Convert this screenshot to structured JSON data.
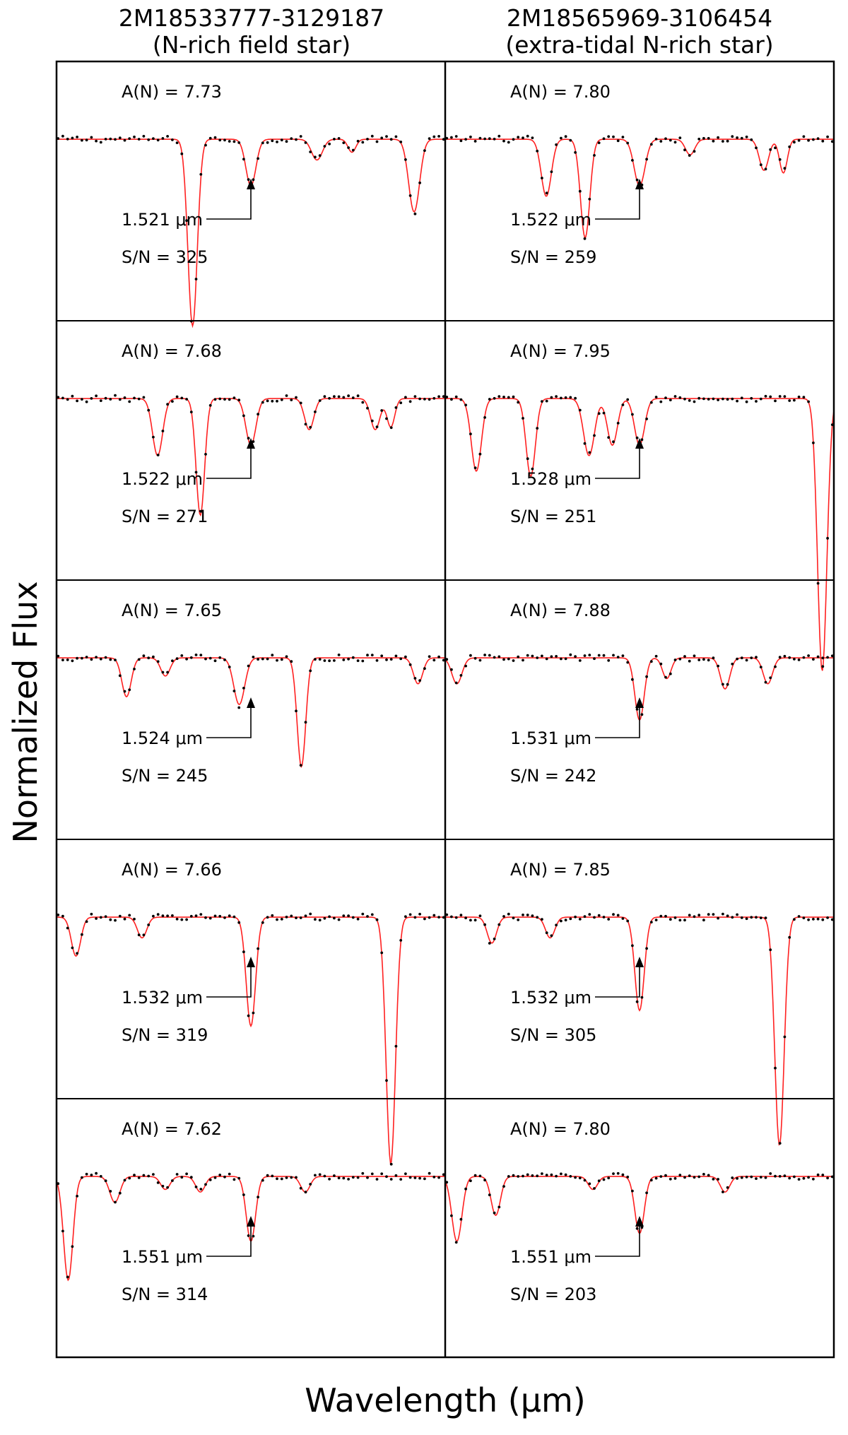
{
  "figure": {
    "xlabel": "Wavelength (μm)",
    "ylabel": "Normalized Flux",
    "columns": [
      {
        "title_line1": "2M18533777-3129187",
        "title_line2": "(N-rich field star)"
      },
      {
        "title_line1": "2M18565969-3106454",
        "title_line2": "(extra-tidal N-rich star)"
      }
    ],
    "colors": {
      "model": "#ff2020",
      "observed": "#000000",
      "frame": "#000000"
    }
  },
  "chart_data": [
    {
      "type": "line",
      "column": 0,
      "row": 0,
      "abundance": "A(N)  =  7.73",
      "wavelength_label": "1.521 μm",
      "snr": "S/N  =  325",
      "series": [
        {
          "style": "observed-points"
        },
        {
          "style": "model-line"
        }
      ],
      "continuum": 0.7,
      "marker_position": 0.5,
      "lines": [
        {
          "pos": 0.35,
          "depth": 0.72,
          "width": 0.012
        },
        {
          "pos": 0.5,
          "depth": 0.18,
          "width": 0.013
        },
        {
          "pos": 0.67,
          "depth": 0.08,
          "width": 0.014
        },
        {
          "pos": 0.76,
          "depth": 0.05,
          "width": 0.01
        },
        {
          "pos": 0.92,
          "depth": 0.28,
          "width": 0.014
        }
      ]
    },
    {
      "type": "line",
      "column": 1,
      "row": 0,
      "abundance": "A(N)  =  7.80",
      "wavelength_label": "1.522 μm",
      "snr": "S/N  =  259",
      "series": [
        {
          "style": "observed-points"
        },
        {
          "style": "model-line"
        }
      ],
      "continuum": 0.7,
      "marker_position": 0.5,
      "lines": [
        {
          "pos": 0.26,
          "depth": 0.22,
          "width": 0.013
        },
        {
          "pos": 0.36,
          "depth": 0.38,
          "width": 0.012
        },
        {
          "pos": 0.5,
          "depth": 0.18,
          "width": 0.014
        },
        {
          "pos": 0.63,
          "depth": 0.06,
          "width": 0.012
        },
        {
          "pos": 0.82,
          "depth": 0.12,
          "width": 0.012
        },
        {
          "pos": 0.87,
          "depth": 0.13,
          "width": 0.01
        }
      ]
    },
    {
      "type": "line",
      "column": 0,
      "row": 1,
      "abundance": "A(N)  =  7.68",
      "wavelength_label": "1.522 μm",
      "snr": "S/N  =  271",
      "series": [
        {
          "style": "observed-points"
        },
        {
          "style": "model-line"
        }
      ],
      "continuum": 0.7,
      "marker_position": 0.5,
      "lines": [
        {
          "pos": 0.26,
          "depth": 0.22,
          "width": 0.013
        },
        {
          "pos": 0.37,
          "depth": 0.45,
          "width": 0.011
        },
        {
          "pos": 0.5,
          "depth": 0.18,
          "width": 0.013
        },
        {
          "pos": 0.65,
          "depth": 0.12,
          "width": 0.012
        },
        {
          "pos": 0.82,
          "depth": 0.12,
          "width": 0.012
        },
        {
          "pos": 0.86,
          "depth": 0.11,
          "width": 0.01
        }
      ]
    },
    {
      "type": "line",
      "column": 1,
      "row": 1,
      "abundance": "A(N)  =  7.95",
      "wavelength_label": "1.528 μm",
      "snr": "S/N  =  251",
      "series": [
        {
          "style": "observed-points"
        },
        {
          "style": "model-line"
        }
      ],
      "continuum": 0.7,
      "marker_position": 0.5,
      "lines": [
        {
          "pos": 0.08,
          "depth": 0.28,
          "width": 0.013
        },
        {
          "pos": 0.22,
          "depth": 0.3,
          "width": 0.012
        },
        {
          "pos": 0.37,
          "depth": 0.22,
          "width": 0.014
        },
        {
          "pos": 0.43,
          "depth": 0.18,
          "width": 0.013
        },
        {
          "pos": 0.5,
          "depth": 0.18,
          "width": 0.013
        },
        {
          "pos": 0.97,
          "depth": 1.05,
          "width": 0.012
        }
      ]
    },
    {
      "type": "line",
      "column": 0,
      "row": 2,
      "abundance": "A(N)  =  7.65",
      "wavelength_label": "1.524 μm",
      "snr": "S/N  =  245",
      "series": [
        {
          "style": "observed-points"
        },
        {
          "style": "model-line"
        }
      ],
      "continuum": 0.7,
      "marker_position": 0.5,
      "lines": [
        {
          "pos": 0.18,
          "depth": 0.15,
          "width": 0.012
        },
        {
          "pos": 0.28,
          "depth": 0.07,
          "width": 0.012
        },
        {
          "pos": 0.47,
          "depth": 0.18,
          "width": 0.014
        },
        {
          "pos": 0.63,
          "depth": 0.42,
          "width": 0.011
        },
        {
          "pos": 0.93,
          "depth": 0.1,
          "width": 0.012
        }
      ]
    },
    {
      "type": "line",
      "column": 1,
      "row": 2,
      "abundance": "A(N)  =  7.88",
      "wavelength_label": "1.531 μm",
      "snr": "S/N  =  242",
      "series": [
        {
          "style": "observed-points"
        },
        {
          "style": "model-line"
        }
      ],
      "continuum": 0.7,
      "marker_position": 0.5,
      "lines": [
        {
          "pos": 0.03,
          "depth": 0.1,
          "width": 0.013
        },
        {
          "pos": 0.5,
          "depth": 0.24,
          "width": 0.012
        },
        {
          "pos": 0.57,
          "depth": 0.08,
          "width": 0.011
        },
        {
          "pos": 0.72,
          "depth": 0.12,
          "width": 0.012
        },
        {
          "pos": 0.83,
          "depth": 0.1,
          "width": 0.012
        }
      ]
    },
    {
      "type": "line",
      "column": 0,
      "row": 3,
      "abundance": "A(N)  =  7.66",
      "wavelength_label": "1.532 μm",
      "snr": "S/N  =  319",
      "series": [
        {
          "style": "observed-points"
        },
        {
          "style": "model-line"
        }
      ],
      "continuum": 0.7,
      "marker_position": 0.5,
      "lines": [
        {
          "pos": 0.05,
          "depth": 0.15,
          "width": 0.012
        },
        {
          "pos": 0.22,
          "depth": 0.08,
          "width": 0.012
        },
        {
          "pos": 0.5,
          "depth": 0.42,
          "width": 0.012
        },
        {
          "pos": 0.86,
          "depth": 0.95,
          "width": 0.012
        }
      ]
    },
    {
      "type": "line",
      "column": 1,
      "row": 3,
      "abundance": "A(N)  =  7.85",
      "wavelength_label": "1.532 μm",
      "snr": "S/N  =  305",
      "series": [
        {
          "style": "observed-points"
        },
        {
          "style": "model-line"
        }
      ],
      "continuum": 0.7,
      "marker_position": 0.5,
      "lines": [
        {
          "pos": 0.12,
          "depth": 0.1,
          "width": 0.012
        },
        {
          "pos": 0.27,
          "depth": 0.08,
          "width": 0.012
        },
        {
          "pos": 0.5,
          "depth": 0.36,
          "width": 0.012
        },
        {
          "pos": 0.86,
          "depth": 0.88,
          "width": 0.012
        }
      ]
    },
    {
      "type": "line",
      "column": 0,
      "row": 4,
      "abundance": "A(N)  =  7.62",
      "wavelength_label": "1.551 μm",
      "snr": "S/N  =  314",
      "series": [
        {
          "style": "observed-points"
        },
        {
          "style": "model-line"
        }
      ],
      "continuum": 0.7,
      "marker_position": 0.5,
      "lines": [
        {
          "pos": 0.03,
          "depth": 0.4,
          "width": 0.012
        },
        {
          "pos": 0.15,
          "depth": 0.1,
          "width": 0.013
        },
        {
          "pos": 0.28,
          "depth": 0.05,
          "width": 0.012
        },
        {
          "pos": 0.37,
          "depth": 0.06,
          "width": 0.012
        },
        {
          "pos": 0.5,
          "depth": 0.25,
          "width": 0.012
        },
        {
          "pos": 0.64,
          "depth": 0.06,
          "width": 0.012
        }
      ]
    },
    {
      "type": "line",
      "column": 1,
      "row": 4,
      "abundance": "A(N)  =  7.80",
      "wavelength_label": "1.551 μm",
      "snr": "S/N  =  203",
      "series": [
        {
          "style": "observed-points"
        },
        {
          "style": "model-line"
        }
      ],
      "continuum": 0.7,
      "marker_position": 0.5,
      "lines": [
        {
          "pos": 0.03,
          "depth": 0.25,
          "width": 0.013
        },
        {
          "pos": 0.13,
          "depth": 0.15,
          "width": 0.012
        },
        {
          "pos": 0.38,
          "depth": 0.05,
          "width": 0.012
        },
        {
          "pos": 0.5,
          "depth": 0.22,
          "width": 0.012
        },
        {
          "pos": 0.72,
          "depth": 0.06,
          "width": 0.012
        }
      ]
    }
  ]
}
